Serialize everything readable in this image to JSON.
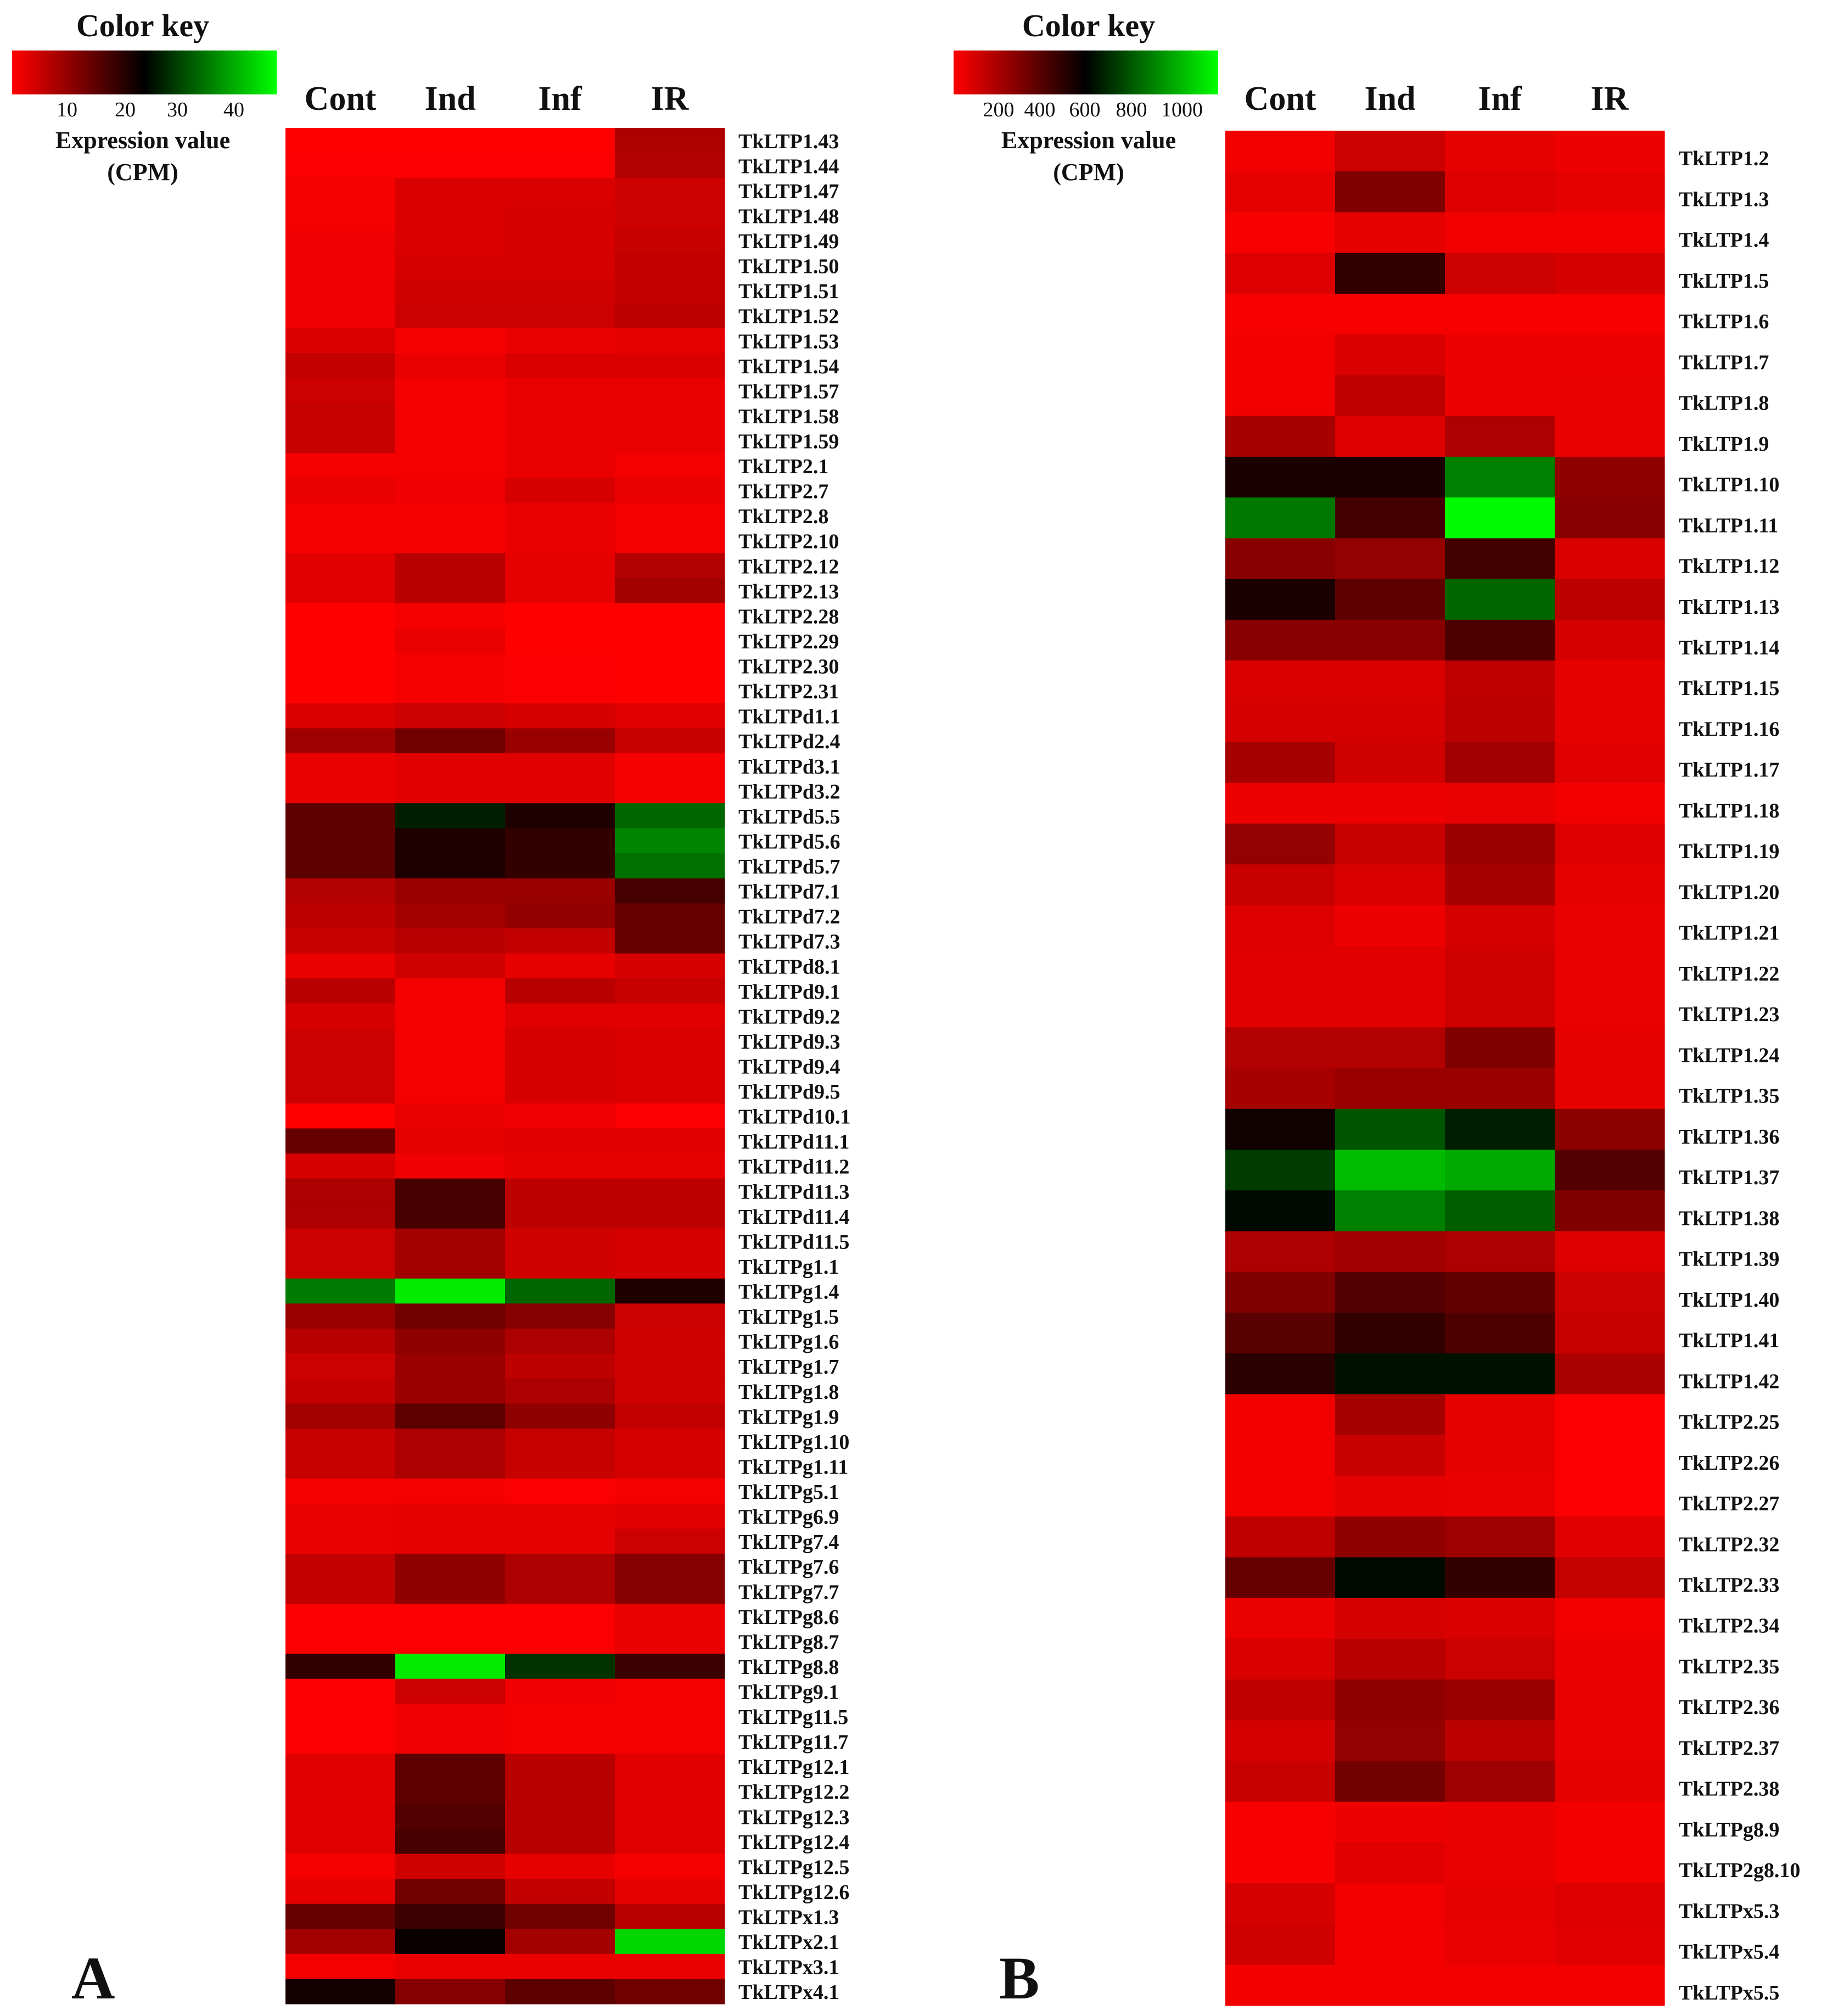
{
  "chart_data": [
    {
      "type": "heatmap",
      "panel_label": "A",
      "color_key": {
        "title": "Color key",
        "label": "Expression value",
        "unit": "(CPM)",
        "ticks": [
          10,
          20,
          30,
          40
        ],
        "range": [
          0,
          50
        ],
        "colors": [
          "#ff0000",
          "#000000",
          "#00ff00"
        ]
      },
      "columns": [
        "Cont",
        "Ind",
        "Inf",
        "IR"
      ],
      "rows": [
        {
          "gene": "TkLTP1.43",
          "values": [
            0.0,
            0.0,
            0.0,
            7.8
          ]
        },
        {
          "gene": "TkLTP1.44",
          "values": [
            0.5,
            0.5,
            0.5,
            7.5
          ]
        },
        {
          "gene": "TkLTP1.47",
          "values": [
            1.0,
            3.5,
            3.5,
            5.0
          ]
        },
        {
          "gene": "TkLTP1.48",
          "values": [
            1.0,
            3.5,
            4.0,
            5.0
          ]
        },
        {
          "gene": "TkLTP1.49",
          "values": [
            1.5,
            3.5,
            4.0,
            5.5
          ]
        },
        {
          "gene": "TkLTP1.50",
          "values": [
            1.5,
            4.0,
            4.0,
            6.0
          ]
        },
        {
          "gene": "TkLTP1.51",
          "values": [
            1.5,
            4.5,
            4.5,
            6.0
          ]
        },
        {
          "gene": "TkLTP1.52",
          "values": [
            1.5,
            5.0,
            5.0,
            6.5
          ]
        },
        {
          "gene": "TkLTP1.53",
          "values": [
            3.5,
            1.0,
            2.0,
            2.5
          ]
        },
        {
          "gene": "TkLTP1.54",
          "values": [
            6.0,
            2.0,
            3.5,
            3.5
          ]
        },
        {
          "gene": "TkLTP1.57",
          "values": [
            5.0,
            1.0,
            2.0,
            2.0
          ]
        },
        {
          "gene": "TkLTP1.58",
          "values": [
            5.5,
            1.0,
            2.0,
            2.0
          ]
        },
        {
          "gene": "TkLTP1.59",
          "values": [
            5.5,
            1.0,
            2.0,
            2.0
          ]
        },
        {
          "gene": "TkLTP2.1",
          "values": [
            1.0,
            1.0,
            2.0,
            1.0
          ]
        },
        {
          "gene": "TkLTP2.7",
          "values": [
            2.0,
            1.5,
            4.0,
            2.0
          ]
        },
        {
          "gene": "TkLTP2.8",
          "values": [
            1.0,
            1.0,
            2.0,
            1.0
          ]
        },
        {
          "gene": "TkLTP2.10",
          "values": [
            1.0,
            1.0,
            2.0,
            1.0
          ]
        },
        {
          "gene": "TkLTP2.12",
          "values": [
            3.0,
            7.0,
            2.5,
            7.5
          ]
        },
        {
          "gene": "TkLTP2.13",
          "values": [
            3.0,
            7.0,
            2.5,
            9.0
          ]
        },
        {
          "gene": "TkLTP2.28",
          "values": [
            0.0,
            1.0,
            0.0,
            0.0
          ]
        },
        {
          "gene": "TkLTP2.29",
          "values": [
            0.0,
            2.0,
            0.0,
            0.0
          ]
        },
        {
          "gene": "TkLTP2.30",
          "values": [
            0.0,
            1.0,
            0.5,
            0.0
          ]
        },
        {
          "gene": "TkLTP2.31",
          "values": [
            0.0,
            1.0,
            0.5,
            0.0
          ]
        },
        {
          "gene": "TkLTPd1.1",
          "values": [
            3.5,
            5.0,
            4.0,
            3.0
          ]
        },
        {
          "gene": "TkLTPd2.4",
          "values": [
            9.5,
            14.0,
            10.0,
            5.5
          ]
        },
        {
          "gene": "TkLTPd3.1",
          "values": [
            2.0,
            3.0,
            3.0,
            1.0
          ]
        },
        {
          "gene": "TkLTPd3.2",
          "values": [
            2.0,
            3.0,
            3.0,
            1.0
          ]
        },
        {
          "gene": "TkLTPd5.5",
          "values": [
            16.0,
            28.0,
            22.0,
            35.0
          ]
        },
        {
          "gene": "TkLTPd5.6",
          "values": [
            16.0,
            22.0,
            20.0,
            38.0
          ]
        },
        {
          "gene": "TkLTPd5.7",
          "values": [
            16.0,
            22.0,
            20.0,
            36.0
          ]
        },
        {
          "gene": "TkLTPd7.1",
          "values": [
            7.5,
            10.0,
            10.0,
            18.0
          ]
        },
        {
          "gene": "TkLTPd7.2",
          "values": [
            6.5,
            9.0,
            10.5,
            15.0
          ]
        },
        {
          "gene": "TkLTPd7.3",
          "values": [
            5.5,
            7.0,
            6.0,
            15.0
          ]
        },
        {
          "gene": "TkLTPd8.1",
          "values": [
            2.0,
            4.5,
            2.5,
            4.0
          ]
        },
        {
          "gene": "TkLTPd9.1",
          "values": [
            7.0,
            1.0,
            7.0,
            5.5
          ]
        },
        {
          "gene": "TkLTPd9.2",
          "values": [
            4.0,
            1.0,
            3.0,
            3.0
          ]
        },
        {
          "gene": "TkLTPd9.3",
          "values": [
            5.0,
            1.0,
            4.0,
            3.5
          ]
        },
        {
          "gene": "TkLTPd9.4",
          "values": [
            5.0,
            1.0,
            4.0,
            3.5
          ]
        },
        {
          "gene": "TkLTPd9.5",
          "values": [
            5.0,
            1.0,
            4.0,
            3.5
          ]
        },
        {
          "gene": "TkLTPd10.1",
          "values": [
            0.0,
            2.0,
            1.5,
            0.5
          ]
        },
        {
          "gene": "TkLTPd11.1",
          "values": [
            15.0,
            2.5,
            3.0,
            3.0
          ]
        },
        {
          "gene": "TkLTPd11.2",
          "values": [
            4.0,
            1.5,
            2.5,
            2.5
          ]
        },
        {
          "gene": "TkLTPd11.3",
          "values": [
            8.0,
            18.0,
            6.5,
            6.5
          ]
        },
        {
          "gene": "TkLTPd11.4",
          "values": [
            8.0,
            18.0,
            6.5,
            6.5
          ]
        },
        {
          "gene": "TkLTPd11.5",
          "values": [
            5.0,
            9.0,
            4.5,
            4.0
          ]
        },
        {
          "gene": "TkLTPg1.1",
          "values": [
            5.0,
            9.0,
            4.5,
            4.0
          ]
        },
        {
          "gene": "TkLTPg1.4",
          "values": [
            37.0,
            48.0,
            35.0,
            22.0
          ]
        },
        {
          "gene": "TkLTPg1.5",
          "values": [
            10.0,
            14.0,
            12.0,
            5.0
          ]
        },
        {
          "gene": "TkLTPg1.6",
          "values": [
            7.0,
            11.0,
            8.0,
            4.5
          ]
        },
        {
          "gene": "TkLTPg1.7",
          "values": [
            5.0,
            10.0,
            6.5,
            4.5
          ]
        },
        {
          "gene": "TkLTPg1.8",
          "values": [
            6.0,
            10.0,
            8.0,
            4.5
          ]
        },
        {
          "gene": "TkLTPg1.9",
          "values": [
            9.0,
            16.0,
            11.0,
            6.0
          ]
        },
        {
          "gene": "TkLTPg1.10",
          "values": [
            5.5,
            8.0,
            5.5,
            4.0
          ]
        },
        {
          "gene": "TkLTPg1.11",
          "values": [
            5.5,
            8.0,
            5.5,
            4.0
          ]
        },
        {
          "gene": "TkLTPg5.1",
          "values": [
            1.0,
            1.0,
            0.5,
            1.0
          ]
        },
        {
          "gene": "TkLTPg6.9",
          "values": [
            2.0,
            2.5,
            2.5,
            3.0
          ]
        },
        {
          "gene": "TkLTPg7.4",
          "values": [
            2.0,
            2.5,
            2.5,
            5.0
          ]
        },
        {
          "gene": "TkLTPg7.6",
          "values": [
            6.0,
            11.0,
            8.0,
            12.0
          ]
        },
        {
          "gene": "TkLTPg7.7",
          "values": [
            6.0,
            11.0,
            8.0,
            12.0
          ]
        },
        {
          "gene": "TkLTPg8.6",
          "values": [
            0.5,
            0.5,
            0.5,
            2.0
          ]
        },
        {
          "gene": "TkLTPg8.7",
          "values": [
            0.5,
            0.5,
            0.5,
            2.0
          ]
        },
        {
          "gene": "TkLTPg8.8",
          "values": [
            20.0,
            48.0,
            30.0,
            19.0
          ]
        },
        {
          "gene": "TkLTPg9.1",
          "values": [
            0.5,
            5.0,
            1.5,
            1.0
          ]
        },
        {
          "gene": "TkLTPg11.5",
          "values": [
            0.5,
            1.5,
            1.0,
            1.0
          ]
        },
        {
          "gene": "TkLTPg11.7",
          "values": [
            0.5,
            1.5,
            1.0,
            1.0
          ]
        },
        {
          "gene": "TkLTPg12.1",
          "values": [
            3.0,
            16.0,
            7.0,
            3.0
          ]
        },
        {
          "gene": "TkLTPg12.2",
          "values": [
            3.0,
            16.0,
            7.0,
            3.0
          ]
        },
        {
          "gene": "TkLTPg12.3",
          "values": [
            3.0,
            17.0,
            7.0,
            3.0
          ]
        },
        {
          "gene": "TkLTPg12.4",
          "values": [
            3.0,
            18.0,
            7.0,
            3.0
          ]
        },
        {
          "gene": "TkLTPg12.5",
          "values": [
            1.0,
            4.5,
            2.5,
            1.0
          ]
        },
        {
          "gene": "TkLTPg12.6",
          "values": [
            2.5,
            14.0,
            6.0,
            2.5
          ]
        },
        {
          "gene": "TkLTPx1.3",
          "values": [
            15.0,
            19.0,
            14.0,
            7.0
          ]
        },
        {
          "gene": "TkLTPx2.1",
          "values": [
            9.0,
            24.0,
            9.0,
            46.0
          ]
        },
        {
          "gene": "TkLTPx3.1",
          "values": [
            1.0,
            2.0,
            2.0,
            2.0
          ]
        },
        {
          "gene": "TkLTPx4.1",
          "values": [
            23.0,
            12.0,
            16.0,
            14.0
          ]
        }
      ]
    },
    {
      "type": "heatmap",
      "panel_label": "B",
      "color_key": {
        "title": "Color key",
        "label": "Expression value",
        "unit": "(CPM)",
        "ticks": [
          200,
          400,
          600,
          800,
          1000
        ],
        "range": [
          0,
          1200
        ],
        "colors": [
          "#ff0000",
          "#000000",
          "#00ff00"
        ]
      },
      "columns": [
        "Cont",
        "Ind",
        "Inf",
        "IR"
      ],
      "rows": [
        {
          "gene": "TkLTP1.2",
          "values": [
            30,
            120,
            60,
            40
          ]
        },
        {
          "gene": "TkLTP1.3",
          "values": [
            60,
            300,
            80,
            60
          ]
        },
        {
          "gene": "TkLTP1.4",
          "values": [
            20,
            60,
            30,
            30
          ]
        },
        {
          "gene": "TkLTP1.5",
          "values": [
            80,
            480,
            120,
            100
          ]
        },
        {
          "gene": "TkLTP1.6",
          "values": [
            20,
            20,
            20,
            20
          ]
        },
        {
          "gene": "TkLTP1.7",
          "values": [
            30,
            90,
            40,
            40
          ]
        },
        {
          "gene": "TkLTP1.8",
          "values": [
            30,
            150,
            40,
            50
          ]
        },
        {
          "gene": "TkLTP1.9",
          "values": [
            210,
            80,
            190,
            50
          ]
        },
        {
          "gene": "TkLTP1.10",
          "values": [
            540,
            540,
            900,
            260
          ]
        },
        {
          "gene": "TkLTP1.11",
          "values": [
            880,
            440,
            1190,
            280
          ]
        },
        {
          "gene": "TkLTP1.12",
          "values": [
            280,
            250,
            450,
            90
          ]
        },
        {
          "gene": "TkLTP1.13",
          "values": [
            540,
            380,
            840,
            160
          ]
        },
        {
          "gene": "TkLTP1.14",
          "values": [
            280,
            280,
            420,
            100
          ]
        },
        {
          "gene": "TkLTP1.15",
          "values": [
            90,
            90,
            150,
            60
          ]
        },
        {
          "gene": "TkLTP1.16",
          "values": [
            100,
            100,
            160,
            60
          ]
        },
        {
          "gene": "TkLTP1.17",
          "values": [
            210,
            110,
            220,
            70
          ]
        },
        {
          "gene": "TkLTP1.18",
          "values": [
            40,
            40,
            50,
            30
          ]
        },
        {
          "gene": "TkLTP1.19",
          "values": [
            250,
            130,
            240,
            80
          ]
        },
        {
          "gene": "TkLTP1.20",
          "values": [
            130,
            90,
            210,
            60
          ]
        },
        {
          "gene": "TkLTP1.21",
          "values": [
            80,
            40,
            100,
            50
          ]
        },
        {
          "gene": "TkLTP1.22",
          "values": [
            70,
            70,
            110,
            50
          ]
        },
        {
          "gene": "TkLTP1.23",
          "values": [
            70,
            70,
            110,
            50
          ]
        },
        {
          "gene": "TkLTP1.24",
          "values": [
            180,
            180,
            300,
            60
          ]
        },
        {
          "gene": "TkLTP1.35",
          "values": [
            210,
            240,
            240,
            60
          ]
        },
        {
          "gene": "TkLTP1.36",
          "values": [
            560,
            800,
            670,
            270
          ]
        },
        {
          "gene": "TkLTP1.37",
          "values": [
            740,
            1040,
            1000,
            400
          ]
        },
        {
          "gene": "TkLTP1.38",
          "values": [
            620,
            900,
            820,
            300
          ]
        },
        {
          "gene": "TkLTP1.39",
          "values": [
            190,
            220,
            190,
            80
          ]
        },
        {
          "gene": "TkLTP1.40",
          "values": [
            300,
            400,
            370,
            120
          ]
        },
        {
          "gene": "TkLTP1.41",
          "values": [
            390,
            480,
            420,
            130
          ]
        },
        {
          "gene": "TkLTP1.42",
          "values": [
            500,
            640,
            640,
            200
          ]
        },
        {
          "gene": "TkLTP2.25",
          "values": [
            30,
            210,
            60,
            10
          ]
        },
        {
          "gene": "TkLTP2.26",
          "values": [
            30,
            130,
            60,
            10
          ]
        },
        {
          "gene": "TkLTP2.27",
          "values": [
            30,
            60,
            50,
            10
          ]
        },
        {
          "gene": "TkLTP2.32",
          "values": [
            150,
            260,
            230,
            70
          ]
        },
        {
          "gene": "TkLTP2.33",
          "values": [
            360,
            620,
            480,
            140
          ]
        },
        {
          "gene": "TkLTP2.34",
          "values": [
            50,
            100,
            90,
            30
          ]
        },
        {
          "gene": "TkLTP2.35",
          "values": [
            90,
            170,
            120,
            40
          ]
        },
        {
          "gene": "TkLTP2.36",
          "values": [
            150,
            260,
            240,
            50
          ]
        },
        {
          "gene": "TkLTP2.37",
          "values": [
            100,
            250,
            160,
            50
          ]
        },
        {
          "gene": "TkLTP2.38",
          "values": [
            130,
            330,
            230,
            60
          ]
        },
        {
          "gene": "TkLTPg8.9",
          "values": [
            20,
            40,
            50,
            30
          ]
        },
        {
          "gene": "TkLTP2g8.10",
          "values": [
            20,
            70,
            50,
            30
          ]
        },
        {
          "gene": "TkLTPx5.3",
          "values": [
            100,
            30,
            60,
            80
          ]
        },
        {
          "gene": "TkLTPx5.4",
          "values": [
            110,
            30,
            50,
            70
          ]
        },
        {
          "gene": "TkLTPx5.5",
          "values": [
            30,
            30,
            30,
            30
          ]
        }
      ]
    }
  ]
}
